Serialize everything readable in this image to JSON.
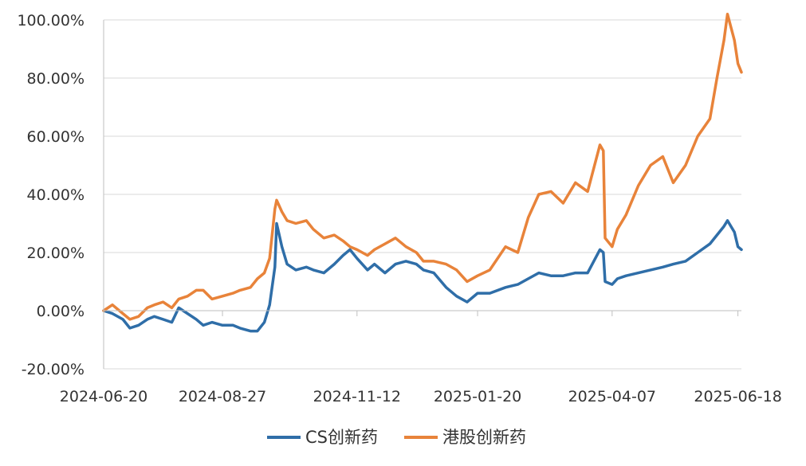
{
  "chart_data": {
    "type": "line",
    "title": "",
    "xlabel": "",
    "ylabel": "",
    "ylim": [
      -20,
      100
    ],
    "yticks": [
      -20,
      0,
      20,
      40,
      60,
      80,
      100
    ],
    "ytick_labels": [
      "-20.00%",
      "0.00%",
      "20.00%",
      "40.00%",
      "60.00%",
      "80.00%",
      "100.00%"
    ],
    "xlim": [
      "2024-06-20",
      "2025-06-20"
    ],
    "xticks": [
      "2024-06-20",
      "2024-08-27",
      "2024-11-12",
      "2025-01-20",
      "2025-04-07",
      "2025-06-18"
    ],
    "grid": {
      "horizontal": true,
      "vertical": false
    },
    "legend_position": "bottom",
    "series": [
      {
        "name": "CS创新药",
        "color": "#2f6ea8",
        "points": [
          [
            "2024-06-20",
            0
          ],
          [
            "2024-06-25",
            -1
          ],
          [
            "2024-07-01",
            -3
          ],
          [
            "2024-07-05",
            -6
          ],
          [
            "2024-07-10",
            -5
          ],
          [
            "2024-07-15",
            -3
          ],
          [
            "2024-07-19",
            -2
          ],
          [
            "2024-07-24",
            -3
          ],
          [
            "2024-07-29",
            -4
          ],
          [
            "2024-08-02",
            1
          ],
          [
            "2024-08-07",
            -1
          ],
          [
            "2024-08-12",
            -3
          ],
          [
            "2024-08-16",
            -5
          ],
          [
            "2024-08-21",
            -4
          ],
          [
            "2024-08-27",
            -5
          ],
          [
            "2024-09-02",
            -5
          ],
          [
            "2024-09-06",
            -6
          ],
          [
            "2024-09-12",
            -7
          ],
          [
            "2024-09-16",
            -7
          ],
          [
            "2024-09-20",
            -4
          ],
          [
            "2024-09-23",
            2
          ],
          [
            "2024-09-26",
            15
          ],
          [
            "2024-09-27",
            30
          ],
          [
            "2024-09-30",
            22
          ],
          [
            "2024-10-03",
            16
          ],
          [
            "2024-10-08",
            14
          ],
          [
            "2024-10-14",
            15
          ],
          [
            "2024-10-18",
            14
          ],
          [
            "2024-10-24",
            13
          ],
          [
            "2024-10-30",
            16
          ],
          [
            "2024-11-04",
            19
          ],
          [
            "2024-11-08",
            21
          ],
          [
            "2024-11-12",
            18
          ],
          [
            "2024-11-18",
            14
          ],
          [
            "2024-11-22",
            16
          ],
          [
            "2024-11-28",
            13
          ],
          [
            "2024-12-04",
            16
          ],
          [
            "2024-12-10",
            17
          ],
          [
            "2024-12-16",
            16
          ],
          [
            "2024-12-20",
            14
          ],
          [
            "2024-12-26",
            13
          ],
          [
            "2025-01-02",
            8
          ],
          [
            "2025-01-08",
            5
          ],
          [
            "2025-01-14",
            3
          ],
          [
            "2025-01-20",
            6
          ],
          [
            "2025-01-27",
            6
          ],
          [
            "2025-02-05",
            8
          ],
          [
            "2025-02-12",
            9
          ],
          [
            "2025-02-18",
            11
          ],
          [
            "2025-02-24",
            13
          ],
          [
            "2025-03-03",
            12
          ],
          [
            "2025-03-10",
            12
          ],
          [
            "2025-03-17",
            13
          ],
          [
            "2025-03-24",
            13
          ],
          [
            "2025-03-31",
            21
          ],
          [
            "2025-04-02",
            20
          ],
          [
            "2025-04-03",
            10
          ],
          [
            "2025-04-07",
            9
          ],
          [
            "2025-04-10",
            11
          ],
          [
            "2025-04-15",
            12
          ],
          [
            "2025-04-22",
            13
          ],
          [
            "2025-04-29",
            14
          ],
          [
            "2025-05-06",
            15
          ],
          [
            "2025-05-12",
            16
          ],
          [
            "2025-05-19",
            17
          ],
          [
            "2025-05-26",
            20
          ],
          [
            "2025-06-02",
            23
          ],
          [
            "2025-06-06",
            26
          ],
          [
            "2025-06-10",
            29
          ],
          [
            "2025-06-12",
            31
          ],
          [
            "2025-06-16",
            27
          ],
          [
            "2025-06-18",
            22
          ],
          [
            "2025-06-20",
            21
          ]
        ]
      },
      {
        "name": "港股创新药",
        "color": "#e8833a",
        "points": [
          [
            "2024-06-20",
            0
          ],
          [
            "2024-06-25",
            2
          ],
          [
            "2024-07-01",
            -1
          ],
          [
            "2024-07-05",
            -3
          ],
          [
            "2024-07-10",
            -2
          ],
          [
            "2024-07-15",
            1
          ],
          [
            "2024-07-19",
            2
          ],
          [
            "2024-07-24",
            3
          ],
          [
            "2024-07-29",
            1
          ],
          [
            "2024-08-02",
            4
          ],
          [
            "2024-08-07",
            5
          ],
          [
            "2024-08-12",
            7
          ],
          [
            "2024-08-16",
            7
          ],
          [
            "2024-08-21",
            4
          ],
          [
            "2024-08-27",
            5
          ],
          [
            "2024-09-02",
            6
          ],
          [
            "2024-09-06",
            7
          ],
          [
            "2024-09-12",
            8
          ],
          [
            "2024-09-16",
            11
          ],
          [
            "2024-09-20",
            13
          ],
          [
            "2024-09-23",
            18
          ],
          [
            "2024-09-26",
            35
          ],
          [
            "2024-09-27",
            38
          ],
          [
            "2024-09-30",
            34
          ],
          [
            "2024-10-03",
            31
          ],
          [
            "2024-10-08",
            30
          ],
          [
            "2024-10-14",
            31
          ],
          [
            "2024-10-18",
            28
          ],
          [
            "2024-10-24",
            25
          ],
          [
            "2024-10-30",
            26
          ],
          [
            "2024-11-04",
            24
          ],
          [
            "2024-11-08",
            22
          ],
          [
            "2024-11-12",
            21
          ],
          [
            "2024-11-18",
            19
          ],
          [
            "2024-11-22",
            21
          ],
          [
            "2024-11-28",
            23
          ],
          [
            "2024-12-04",
            25
          ],
          [
            "2024-12-10",
            22
          ],
          [
            "2024-12-16",
            20
          ],
          [
            "2024-12-20",
            17
          ],
          [
            "2024-12-26",
            17
          ],
          [
            "2025-01-02",
            16
          ],
          [
            "2025-01-08",
            14
          ],
          [
            "2025-01-14",
            10
          ],
          [
            "2025-01-20",
            12
          ],
          [
            "2025-01-27",
            14
          ],
          [
            "2025-02-05",
            22
          ],
          [
            "2025-02-12",
            20
          ],
          [
            "2025-02-18",
            32
          ],
          [
            "2025-02-24",
            40
          ],
          [
            "2025-03-03",
            41
          ],
          [
            "2025-03-10",
            37
          ],
          [
            "2025-03-17",
            44
          ],
          [
            "2025-03-24",
            41
          ],
          [
            "2025-03-31",
            57
          ],
          [
            "2025-04-02",
            55
          ],
          [
            "2025-04-03",
            25
          ],
          [
            "2025-04-07",
            22
          ],
          [
            "2025-04-10",
            28
          ],
          [
            "2025-04-15",
            33
          ],
          [
            "2025-04-22",
            43
          ],
          [
            "2025-04-29",
            50
          ],
          [
            "2025-05-06",
            53
          ],
          [
            "2025-05-12",
            44
          ],
          [
            "2025-05-19",
            50
          ],
          [
            "2025-05-26",
            60
          ],
          [
            "2025-06-02",
            66
          ],
          [
            "2025-06-06",
            80
          ],
          [
            "2025-06-10",
            93
          ],
          [
            "2025-06-12",
            102
          ],
          [
            "2025-06-16",
            93
          ],
          [
            "2025-06-18",
            85
          ],
          [
            "2025-06-20",
            82
          ]
        ]
      }
    ]
  }
}
